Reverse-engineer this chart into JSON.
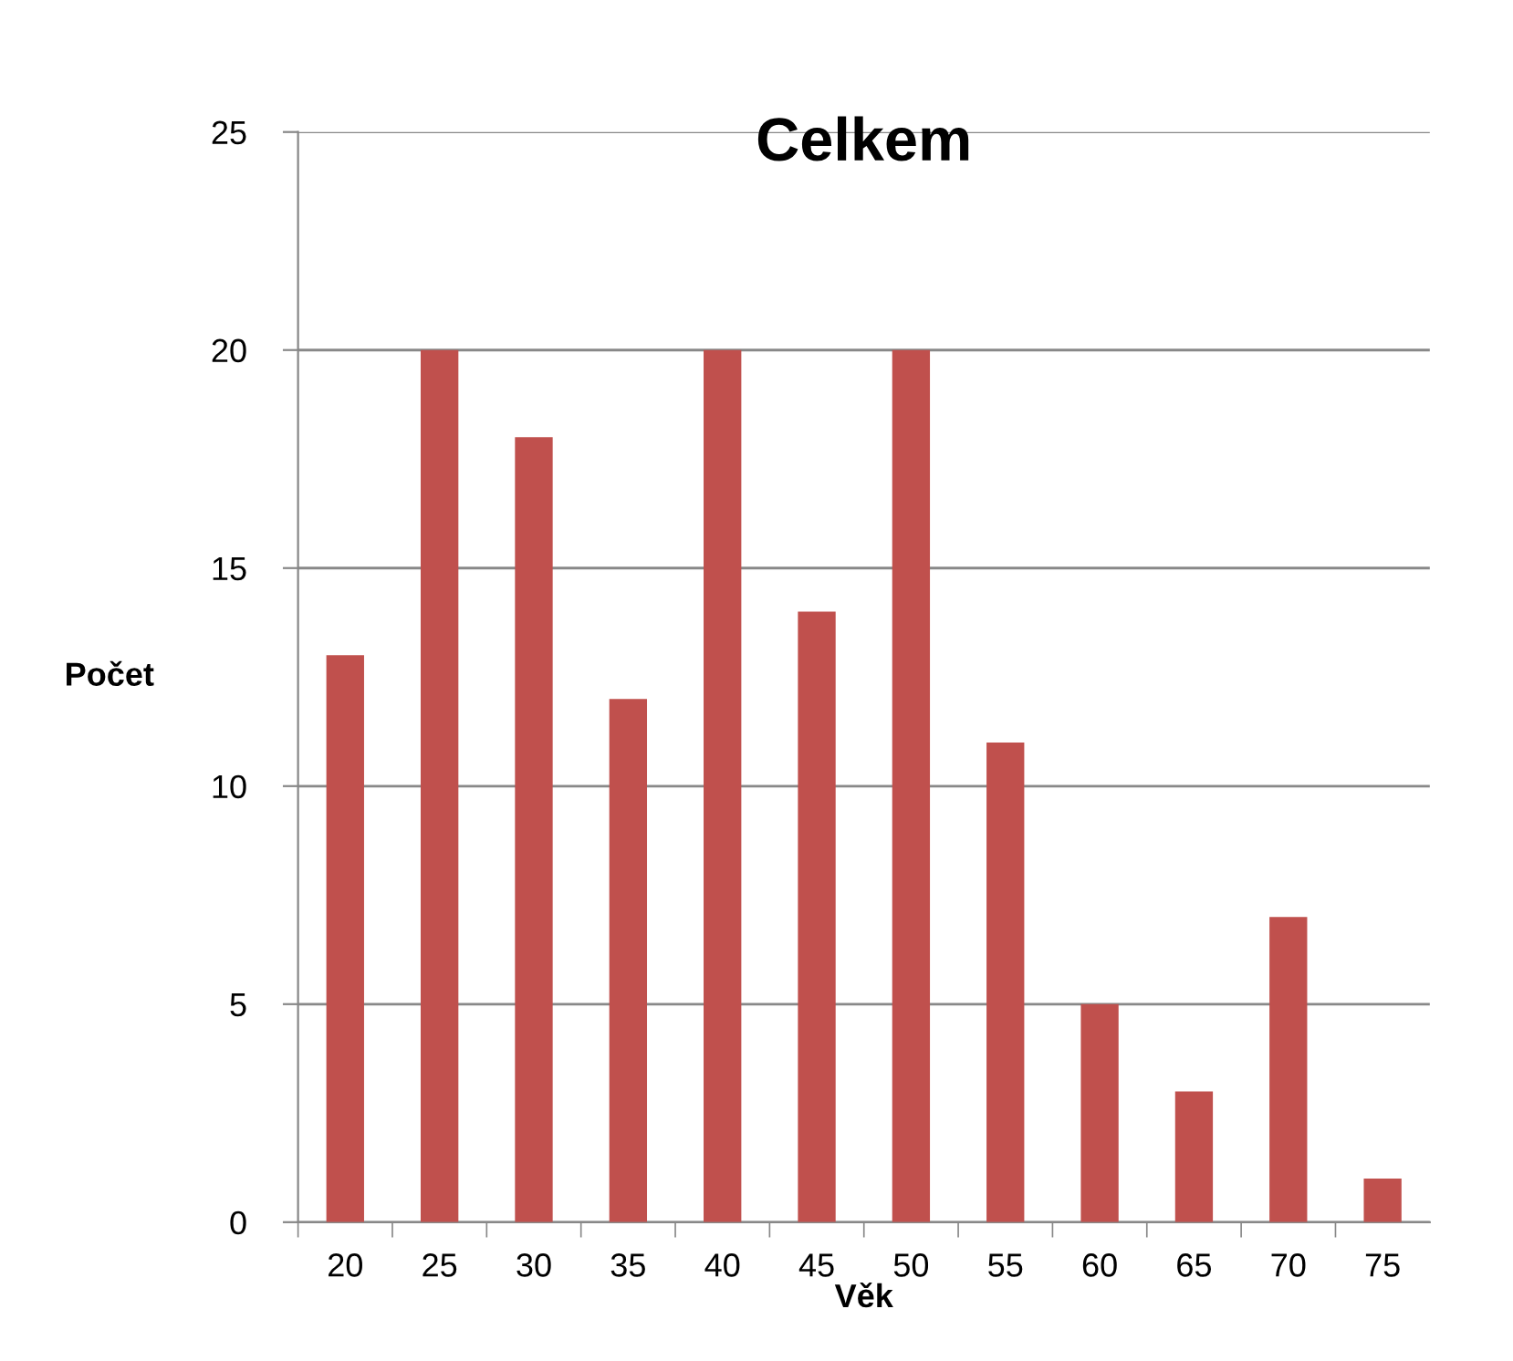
{
  "chart_data": {
    "type": "bar",
    "title": "Celkem",
    "xlabel": "Věk",
    "ylabel": "Počet",
    "categories": [
      "20",
      "25",
      "30",
      "35",
      "40",
      "45",
      "50",
      "55",
      "60",
      "65",
      "70",
      "75"
    ],
    "values": [
      13,
      20,
      18,
      12,
      20,
      14,
      20,
      11,
      5,
      3,
      7,
      1
    ],
    "color": "#c0504d",
    "ylim": [
      0,
      25
    ],
    "yticks": [
      0,
      5,
      10,
      15,
      20,
      25
    ],
    "grid": "y",
    "legend": false
  }
}
